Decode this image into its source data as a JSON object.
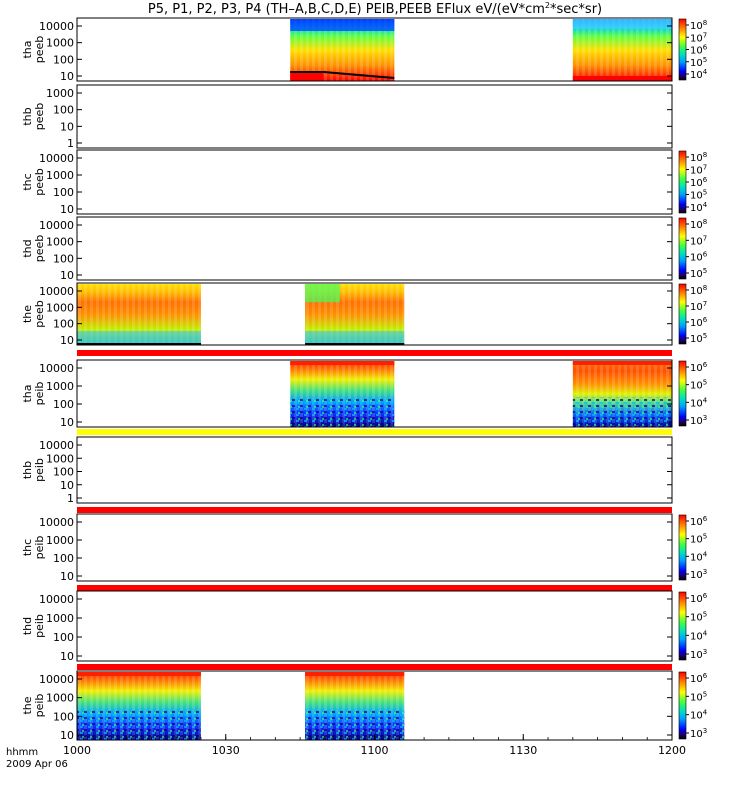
{
  "title": "P5, P1, P2, P3, P4 (TH–A,B,C,D,E) PEIB,PEEB EFlux eV/(eV*cm",
  "title_sup": "2",
  "title_tail": "*sec*sr)",
  "footer": {
    "line1": "hhmm",
    "line2": "2009 Apr 06"
  },
  "colors": {
    "red": "#ff0000",
    "orange": "#ff8c00",
    "yellow": "#ffff00",
    "green": "#22cc22",
    "cyan": "#00e0e0",
    "blue": "#0033ff",
    "navy": "#000080",
    "black": "#000000"
  },
  "chart_data": {
    "type": "heatmap",
    "x_range": [
      "1000",
      "1200"
    ],
    "x_ticks": [
      "1000",
      "1030",
      "1100",
      "1130",
      "1200"
    ],
    "panels": [
      {
        "id": "tha-peeb",
        "ylabel": [
          "tha",
          "peeb"
        ],
        "yticks": [
          "10000",
          "1000",
          "100",
          "10"
        ],
        "cbar": [
          "10^8",
          "10^7",
          "10^6",
          "10^5",
          "10^4"
        ],
        "blocks": [
          {
            "start": "1043",
            "end": "1104",
            "style": "peeb-a"
          },
          {
            "start": "1140",
            "end": "1200",
            "style": "peeb-a2"
          }
        ],
        "status_bar": null
      },
      {
        "id": "thb-peeb",
        "ylabel": [
          "thb",
          "peeb"
        ],
        "yticks": [
          "1000",
          "100",
          "10",
          "1"
        ],
        "cbar": [],
        "blocks": [],
        "status_bar": null
      },
      {
        "id": "thc-peeb",
        "ylabel": [
          "thc",
          "peeb"
        ],
        "yticks": [
          "10000",
          "1000",
          "100",
          "10"
        ],
        "cbar": [
          "10^8",
          "10^7",
          "10^6",
          "10^5",
          "10^4"
        ],
        "blocks": [],
        "status_bar": null
      },
      {
        "id": "thd-peeb",
        "ylabel": [
          "thd",
          "peeb"
        ],
        "yticks": [
          "10000",
          "1000",
          "100",
          "10"
        ],
        "cbar": [
          "10^8",
          "10^7",
          "10^6",
          "10^5"
        ],
        "blocks": [],
        "status_bar": null
      },
      {
        "id": "the-peeb",
        "ylabel": [
          "the",
          "peeb"
        ],
        "yticks": [
          "10000",
          "1000",
          "100",
          "10"
        ],
        "cbar": [
          "10^8",
          "10^7",
          "10^6",
          "10^5"
        ],
        "blocks": [
          {
            "start": "1000",
            "end": "1025",
            "style": "peeb-e"
          },
          {
            "start": "1046",
            "end": "1106",
            "style": "peeb-e2"
          }
        ],
        "status_bar": null
      },
      {
        "id": "tha-peib",
        "ylabel": [
          "tha",
          "peib"
        ],
        "yticks": [
          "10000",
          "1000",
          "100",
          "10"
        ],
        "cbar": [
          "10^6",
          "10^5",
          "10^4",
          "10^3"
        ],
        "blocks": [
          {
            "start": "1043",
            "end": "1104",
            "style": "peib-a"
          },
          {
            "start": "1140",
            "end": "1200",
            "style": "peib-a2"
          }
        ],
        "status_bar": "red"
      },
      {
        "id": "thb-peib",
        "ylabel": [
          "thb",
          "peib"
        ],
        "yticks": [
          "10000",
          "1000",
          "100",
          "10",
          "1"
        ],
        "cbar": [],
        "blocks": [],
        "status_bar": "yellow"
      },
      {
        "id": "thc-peib",
        "ylabel": [
          "thc",
          "peib"
        ],
        "yticks": [
          "10000",
          "1000",
          "100",
          "10"
        ],
        "cbar": [
          "10^6",
          "10^5",
          "10^4",
          "10^3"
        ],
        "blocks": [],
        "status_bar": "red"
      },
      {
        "id": "thd-peib",
        "ylabel": [
          "thd",
          "peib"
        ],
        "yticks": [
          "10000",
          "1000",
          "100",
          "10"
        ],
        "cbar": [
          "10^6",
          "10^5",
          "10^4",
          "10^3"
        ],
        "blocks": [],
        "status_bar": "red"
      },
      {
        "id": "the-peib",
        "ylabel": [
          "the",
          "peib"
        ],
        "yticks": [
          "10000",
          "1000",
          "100",
          "10"
        ],
        "cbar": [
          "10^6",
          "10^5",
          "10^4",
          "10^3"
        ],
        "blocks": [
          {
            "start": "1000",
            "end": "1025",
            "style": "peib-e"
          },
          {
            "start": "1046",
            "end": "1106",
            "style": "peib-e2"
          }
        ],
        "status_bar": "red"
      }
    ]
  }
}
